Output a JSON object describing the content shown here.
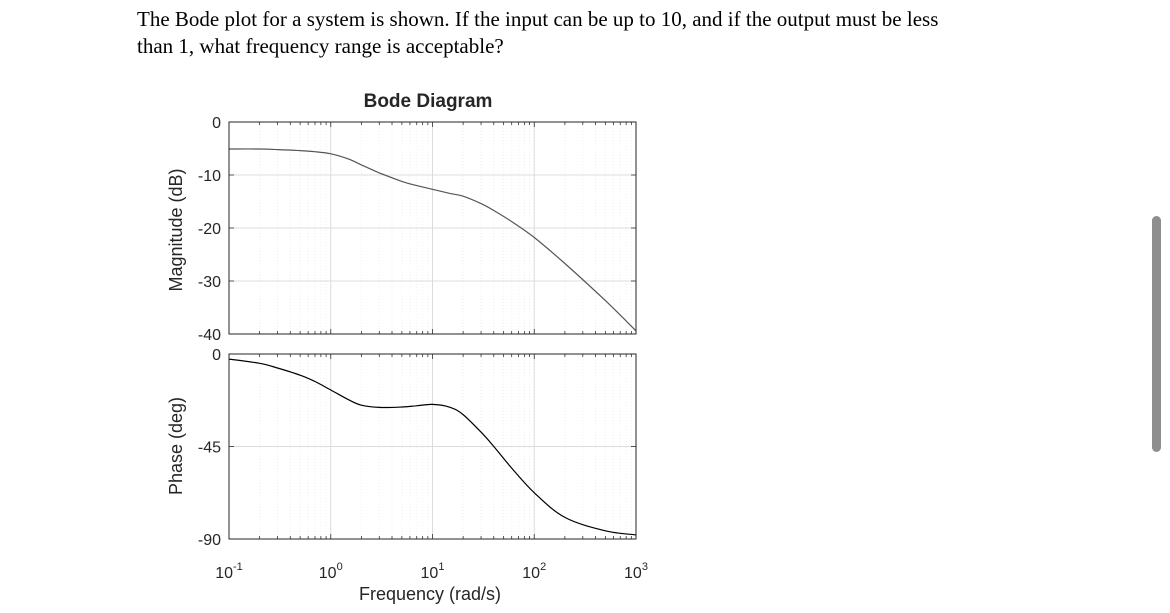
{
  "question": {
    "line1": "The Bode plot for a system is shown. If the input can be up to 10, and if the output must be less",
    "line2": "than 1, what frequency range is acceptable?"
  },
  "chart_data": {
    "type": "line",
    "title": "Bode Diagram",
    "xlabel": "Frequency (rad/s)",
    "x_scale": "log",
    "xlim": [
      0.1,
      1000
    ],
    "x_ticks": [
      {
        "base": "10",
        "exp": "-1"
      },
      {
        "base": "10",
        "exp": "0"
      },
      {
        "base": "10",
        "exp": "1"
      },
      {
        "base": "10",
        "exp": "2"
      },
      {
        "base": "10",
        "exp": "3"
      }
    ],
    "grid": true,
    "magnitude": {
      "ylabel": "Magnitude (dB)",
      "ylim": [
        -40,
        0
      ],
      "y_ticks": [
        "0",
        "-10",
        "-20",
        "-30",
        "-40"
      ],
      "color": "#555555",
      "x": [
        0.1,
        0.2,
        0.3,
        0.5,
        0.7,
        1,
        1.5,
        2,
        3,
        5,
        7,
        10,
        15,
        20,
        30,
        40,
        60,
        100,
        200,
        500,
        1000
      ],
      "y": [
        -5.1,
        -5.1,
        -5.2,
        -5.4,
        -5.6,
        -6.0,
        -7.0,
        -8.1,
        -9.6,
        -11.2,
        -12.0,
        -12.7,
        -13.5,
        -14.0,
        -15.4,
        -16.7,
        -18.8,
        -21.8,
        -26.7,
        -33.7,
        -39.4
      ]
    },
    "phase": {
      "ylabel": "Phase (deg)",
      "ylim": [
        -90,
        0
      ],
      "y_ticks": [
        "0",
        "-45",
        "-90"
      ],
      "color": "#000000",
      "x": [
        0.1,
        0.2,
        0.3,
        0.5,
        0.7,
        1,
        1.5,
        2,
        3,
        5,
        7,
        10,
        15,
        20,
        30,
        40,
        60,
        100,
        200,
        500,
        1000
      ],
      "y": [
        -2.5,
        -4.5,
        -6.8,
        -10.3,
        -13.4,
        -17.5,
        -22.3,
        -24.9,
        -26.0,
        -25.8,
        -25.2,
        -24.5,
        -26.0,
        -29.5,
        -38.0,
        -45.0,
        -55.5,
        -67.5,
        -79.5,
        -86.0,
        -88.0
      ]
    }
  }
}
